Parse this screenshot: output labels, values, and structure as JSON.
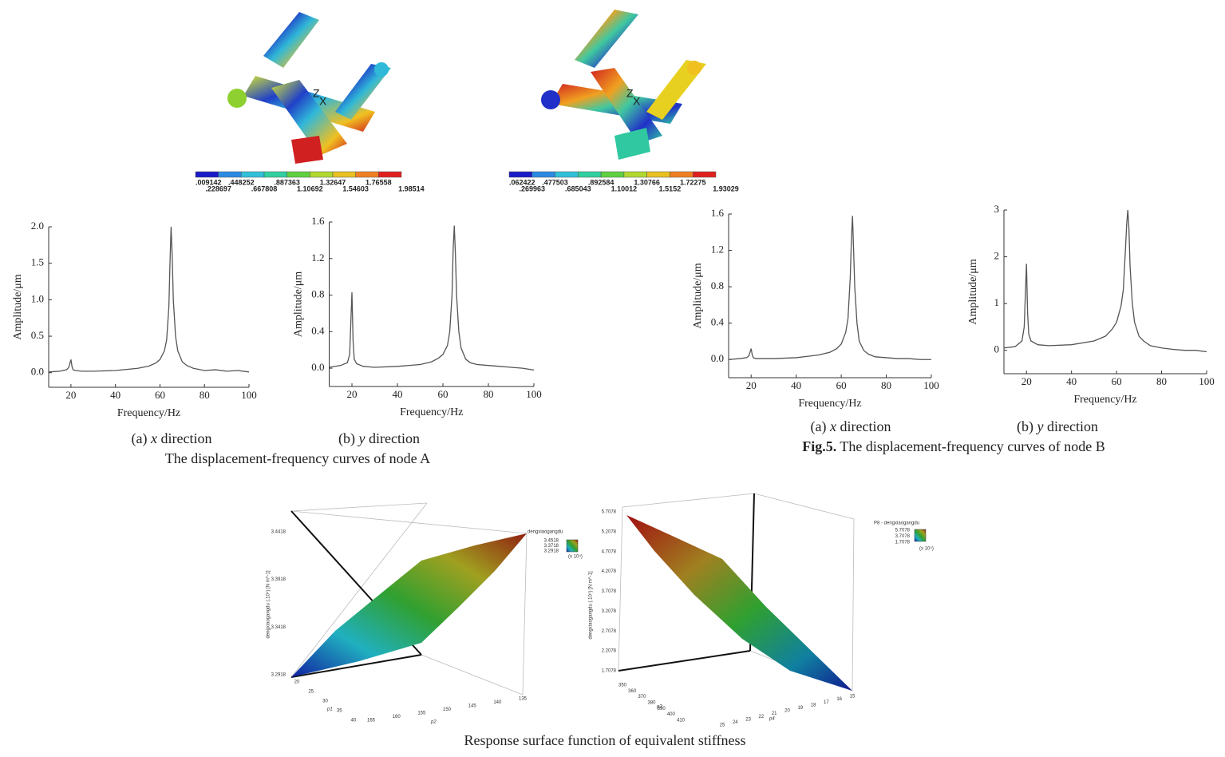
{
  "contours": [
    {
      "colorbar_top": [
        ".009142",
        ".448252",
        ".887363",
        "1.32647",
        "1.76558"
      ],
      "colorbar_bottom": [
        ".228697",
        ".667808",
        "1.10692",
        "1.54603",
        "1.98514"
      ],
      "axes_labels": [
        "Z",
        "X"
      ]
    },
    {
      "colorbar_top": [
        ".062422",
        ".477503",
        ".892584",
        "1.30766",
        "1.72275"
      ],
      "colorbar_bottom": [
        ".269963",
        ".685043",
        "1.10012",
        "1.5152",
        "1.93029"
      ],
      "axes_labels": [
        "Z",
        "X"
      ]
    }
  ],
  "chart_data": [
    {
      "type": "line",
      "xlabel": "Frequency/Hz",
      "ylabel": "Amplitude/μm",
      "panel": "(a)",
      "direction_axis": "x",
      "direction_word": "direction",
      "color": "#555555",
      "x": [
        10,
        15,
        18,
        19,
        20,
        20.5,
        21,
        22,
        25,
        30,
        40,
        50,
        55,
        58,
        60,
        62,
        63,
        64,
        64.5,
        65,
        65.5,
        66,
        67,
        68,
        70,
        72,
        75,
        80,
        85,
        90,
        95,
        100
      ],
      "values": [
        0.01,
        0.02,
        0.04,
        0.07,
        0.18,
        0.08,
        0.04,
        0.03,
        0.02,
        0.02,
        0.03,
        0.06,
        0.09,
        0.13,
        0.18,
        0.3,
        0.45,
        0.9,
        1.5,
        2.0,
        1.6,
        1.0,
        0.5,
        0.3,
        0.15,
        0.1,
        0.06,
        0.03,
        0.04,
        0.02,
        0.03,
        0.01
      ],
      "xlim": [
        10,
        100
      ],
      "ylim": [
        -0.2,
        2.0
      ],
      "xticks": [
        20,
        40,
        60,
        80,
        100
      ],
      "yticks": [
        {
          "value": 0,
          "label": "0.0"
        },
        0.5,
        {
          "value": 1,
          "label": "1.0"
        },
        1.5,
        {
          "value": 2,
          "label": "2.0"
        }
      ]
    },
    {
      "type": "line",
      "xlabel": "Frequency/Hz",
      "ylabel": "Amplitude/μm",
      "panel": "(b)",
      "direction_axis": "y",
      "direction_word": "direction",
      "color": "#555555",
      "x": [
        10,
        15,
        18,
        19,
        20,
        20.5,
        21,
        22,
        25,
        30,
        40,
        50,
        55,
        58,
        60,
        62,
        63,
        64,
        64.5,
        65,
        65.5,
        66,
        67,
        68,
        70,
        72,
        75,
        80,
        85,
        90,
        95,
        100
      ],
      "values": [
        0.01,
        0.03,
        0.06,
        0.15,
        0.83,
        0.3,
        0.1,
        0.05,
        0.02,
        0.01,
        0.02,
        0.04,
        0.07,
        0.11,
        0.15,
        0.25,
        0.4,
        0.8,
        1.3,
        1.56,
        1.25,
        0.8,
        0.4,
        0.22,
        0.1,
        0.06,
        0.04,
        0.03,
        0.02,
        0.01,
        0.0,
        -0.02
      ],
      "xlim": [
        10,
        100
      ],
      "ylim": [
        -0.2,
        1.6
      ],
      "xticks": [
        20,
        40,
        60,
        80,
        100
      ],
      "yticks": [
        {
          "value": 0,
          "label": "0.0"
        },
        0.4,
        0.8,
        1.2,
        1.6
      ]
    },
    {
      "type": "line",
      "xlabel": "Frequency/Hz",
      "ylabel": "Amplitude/μm",
      "panel": "(a)",
      "direction_axis": "x",
      "direction_word": "direction",
      "color": "#555555",
      "x": [
        10,
        15,
        18,
        19,
        20,
        20.5,
        21,
        22,
        25,
        30,
        40,
        50,
        55,
        58,
        60,
        62,
        63,
        64,
        64.5,
        65,
        65.5,
        66,
        67,
        68,
        70,
        72,
        75,
        80,
        85,
        90,
        95,
        100
      ],
      "values": [
        0.0,
        0.01,
        0.02,
        0.04,
        0.12,
        0.05,
        0.02,
        0.01,
        0.01,
        0.01,
        0.02,
        0.05,
        0.08,
        0.12,
        0.17,
        0.3,
        0.45,
        0.9,
        1.3,
        1.58,
        1.2,
        0.8,
        0.4,
        0.2,
        0.1,
        0.06,
        0.03,
        0.02,
        0.01,
        0.01,
        0.0,
        0.0
      ],
      "xlim": [
        10,
        100
      ],
      "ylim": [
        -0.2,
        1.6
      ],
      "xticks": [
        20,
        40,
        60,
        80,
        100
      ],
      "yticks": [
        {
          "value": 0,
          "label": "0.0"
        },
        0.4,
        0.8,
        1.2,
        1.6
      ]
    },
    {
      "type": "line",
      "xlabel": "Frequency/Hz",
      "ylabel": "Amplitude/μm",
      "panel": "(b)",
      "direction_axis": "y",
      "direction_word": "direction",
      "color": "#555555",
      "x": [
        10,
        15,
        18,
        19,
        20,
        20.5,
        21,
        22,
        25,
        30,
        40,
        50,
        55,
        58,
        60,
        62,
        63,
        64,
        64.5,
        65,
        65.5,
        66,
        67,
        68,
        70,
        72,
        75,
        80,
        85,
        90,
        95,
        100
      ],
      "values": [
        0.05,
        0.08,
        0.2,
        0.5,
        1.85,
        0.8,
        0.35,
        0.2,
        0.12,
        0.1,
        0.12,
        0.2,
        0.3,
        0.45,
        0.6,
        0.95,
        1.3,
        2.2,
        2.7,
        3.0,
        2.6,
        1.8,
        1.0,
        0.6,
        0.3,
        0.2,
        0.1,
        0.05,
        0.02,
        0.0,
        0.0,
        -0.03
      ],
      "xlim": [
        10,
        100
      ],
      "ylim": [
        -0.5,
        3
      ],
      "xticks": [
        20,
        40,
        60,
        80,
        100
      ],
      "yticks": [
        0,
        1,
        2,
        3
      ]
    }
  ],
  "captions": {
    "node_a": "The displacement-frequency curves of node A",
    "fig_label": "Fig.5.",
    "node_b": "The displacement-frequency curves of node B",
    "surface": "Response surface function of equivalent stiffness"
  },
  "surfaces": [
    {
      "z_label": "dengxiaogangdu (.10⁴) [N m^-1]",
      "z_ticks": [
        "3.2918",
        "3.3418",
        "3.3918",
        "3.4418"
      ],
      "x_label": "p1",
      "x_ticks": [
        "20",
        "25",
        "30",
        "35",
        "40"
      ],
      "y_label": "p2",
      "y_ticks": [
        "165",
        "160",
        "155",
        "150",
        "145",
        "140",
        "135"
      ],
      "legend_title": "dengxiaogangdu",
      "legend_values": [
        "3.4518",
        "3.3718",
        "3.2918"
      ],
      "legend_unit": "(x 10⁴)"
    },
    {
      "z_label": "dengxiaogangdu (.10⁴) [N m^-1]",
      "z_ticks": [
        "1.7078",
        "2.2078",
        "2.7078",
        "3.2078",
        "3.7078",
        "4.2078",
        "4.7078",
        "5.2078",
        "5.7078"
      ],
      "x_label": "p3",
      "x_ticks": [
        "350",
        "360",
        "370",
        "380",
        "390",
        "400",
        "410"
      ],
      "y_label": "p4",
      "y_ticks": [
        "25",
        "24",
        "23",
        "22",
        "21",
        "20",
        "19",
        "18",
        "17",
        "16",
        "15"
      ],
      "legend_title": "P8 - dengxiaogangdu",
      "legend_values": [
        "5.7078",
        "3.7078",
        "1.7078"
      ],
      "legend_unit": "(x 10⁴)"
    }
  ]
}
